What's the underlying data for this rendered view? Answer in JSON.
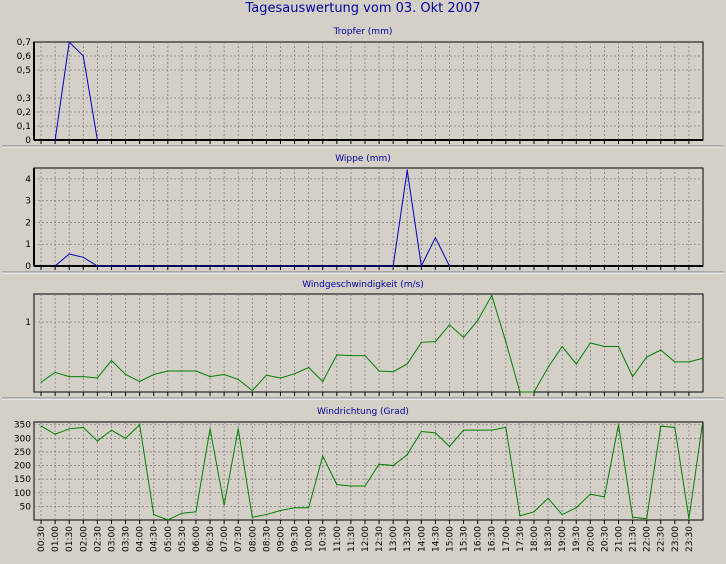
{
  "title": "Tagesauswertung vom 03. Okt 2007",
  "colors": {
    "background": "#d4d0c8",
    "blue_series": "#0000c0",
    "green_series": "#008000",
    "title_text": "#0000a0",
    "grid": "#808080"
  },
  "x_tick_labels": [
    "00:30",
    "01:00",
    "01:30",
    "02:00",
    "02:30",
    "03:00",
    "03:30",
    "04:00",
    "04:30",
    "05:00",
    "05:30",
    "06:00",
    "06:30",
    "07:00",
    "07:30",
    "08:00",
    "08:30",
    "09:00",
    "09:30",
    "10:00",
    "10:30",
    "11:00",
    "11:30",
    "12:00",
    "12:30",
    "13:00",
    "13:30",
    "14:00",
    "14:30",
    "15:00",
    "15:30",
    "16:00",
    "16:30",
    "17:00",
    "17:30",
    "18:00",
    "18:30",
    "19:00",
    "19:30",
    "20:00",
    "20:30",
    "21:00",
    "21:30",
    "22:00",
    "22:30",
    "23:00",
    "23:30"
  ],
  "chart_data": [
    {
      "type": "line",
      "title": "Tropfer (mm)",
      "color": "#0000c0",
      "ylim": [
        0,
        0.7
      ],
      "y_ticks": [
        0,
        0.1,
        0.2,
        0.3,
        0.5,
        0.6,
        0.7
      ],
      "y_tick_labels": [
        "0",
        "0,1",
        "0,2",
        "0,3",
        "0,5",
        "0,6",
        "0,7"
      ],
      "x": [
        "01:00",
        "01:30",
        "02:00",
        "02:30"
      ],
      "values": [
        0,
        0.7,
        0.6,
        0
      ]
    },
    {
      "type": "line",
      "title": "Wippe (mm)",
      "color": "#0000c0",
      "ylim": [
        0,
        4.5
      ],
      "y_ticks": [
        0,
        1,
        2,
        3,
        4
      ],
      "y_tick_labels": [
        "0",
        "1",
        "2",
        "3",
        "4"
      ],
      "x": [
        "01:00",
        "01:30",
        "02:00",
        "02:30",
        "13:00",
        "13:30",
        "14:00",
        "14:30",
        "15:00"
      ],
      "values": [
        0,
        0.55,
        0.4,
        0,
        0,
        4.4,
        0,
        1.3,
        0
      ]
    },
    {
      "type": "line",
      "title": "Windgeschwindigkeit (m/s)",
      "color": "#008000",
      "ylim": [
        0,
        1.4
      ],
      "y_ticks": [
        1
      ],
      "y_tick_labels": [
        "1"
      ],
      "x": [
        "00:30",
        "01:00",
        "01:30",
        "02:00",
        "02:30",
        "03:00",
        "03:30",
        "04:00",
        "04:30",
        "05:00",
        "05:30",
        "06:00",
        "06:30",
        "07:00",
        "07:30",
        "08:00",
        "08:30",
        "09:00",
        "09:30",
        "10:00",
        "10:30",
        "11:00",
        "11:30",
        "12:00",
        "12:30",
        "13:00",
        "13:30",
        "14:00",
        "14:30",
        "15:00",
        "15:30",
        "16:00",
        "16:30",
        "17:00",
        "17:30",
        "18:00",
        "18:30",
        "19:00",
        "19:30",
        "20:00",
        "20:30",
        "21:00",
        "21:30",
        "22:00",
        "22:30",
        "23:00",
        "23:30",
        "23:59"
      ],
      "values": [
        0.14,
        0.28,
        0.22,
        0.22,
        0.2,
        0.45,
        0.25,
        0.15,
        0.25,
        0.3,
        0.3,
        0.3,
        0.22,
        0.25,
        0.18,
        0.02,
        0.24,
        0.2,
        0.26,
        0.35,
        0.15,
        0.53,
        0.52,
        0.52,
        0.3,
        0.29,
        0.4,
        0.71,
        0.72,
        0.96,
        0.78,
        1.02,
        1.38,
        0.72,
        0,
        0,
        0.35,
        0.65,
        0.4,
        0.7,
        0.65,
        0.65,
        0.22,
        0.5,
        0.6,
        0.43,
        0.43,
        0.48
      ]
    },
    {
      "type": "line",
      "title": "Windrichtung (Grad)",
      "color": "#008000",
      "ylim": [
        0,
        360
      ],
      "y_ticks": [
        50,
        100,
        150,
        200,
        250,
        300,
        350
      ],
      "y_tick_labels": [
        "50",
        "100",
        "150",
        "200",
        "250",
        "300",
        "350"
      ],
      "x": [
        "00:30",
        "01:00",
        "01:30",
        "02:00",
        "02:30",
        "03:00",
        "03:30",
        "04:00",
        "04:30",
        "05:00",
        "05:30",
        "06:00",
        "06:30",
        "07:00",
        "07:30",
        "08:00",
        "08:30",
        "09:00",
        "09:30",
        "10:00",
        "10:30",
        "11:00",
        "11:30",
        "12:00",
        "12:30",
        "13:00",
        "13:30",
        "14:00",
        "14:30",
        "15:00",
        "15:30",
        "16:00",
        "16:30",
        "17:00",
        "17:30",
        "18:00",
        "18:30",
        "19:00",
        "19:30",
        "20:00",
        "20:30",
        "21:00",
        "21:30",
        "22:00",
        "22:30",
        "23:00",
        "23:30",
        "23:59"
      ],
      "values": [
        345,
        315,
        335,
        340,
        290,
        330,
        300,
        350,
        20,
        0,
        25,
        30,
        335,
        55,
        335,
        10,
        20,
        35,
        45,
        45,
        235,
        130,
        125,
        125,
        205,
        200,
        240,
        325,
        320,
        270,
        330,
        330,
        330,
        340,
        15,
        30,
        80,
        20,
        45,
        95,
        85,
        350,
        10,
        5,
        345,
        340,
        5,
        355
      ]
    }
  ]
}
